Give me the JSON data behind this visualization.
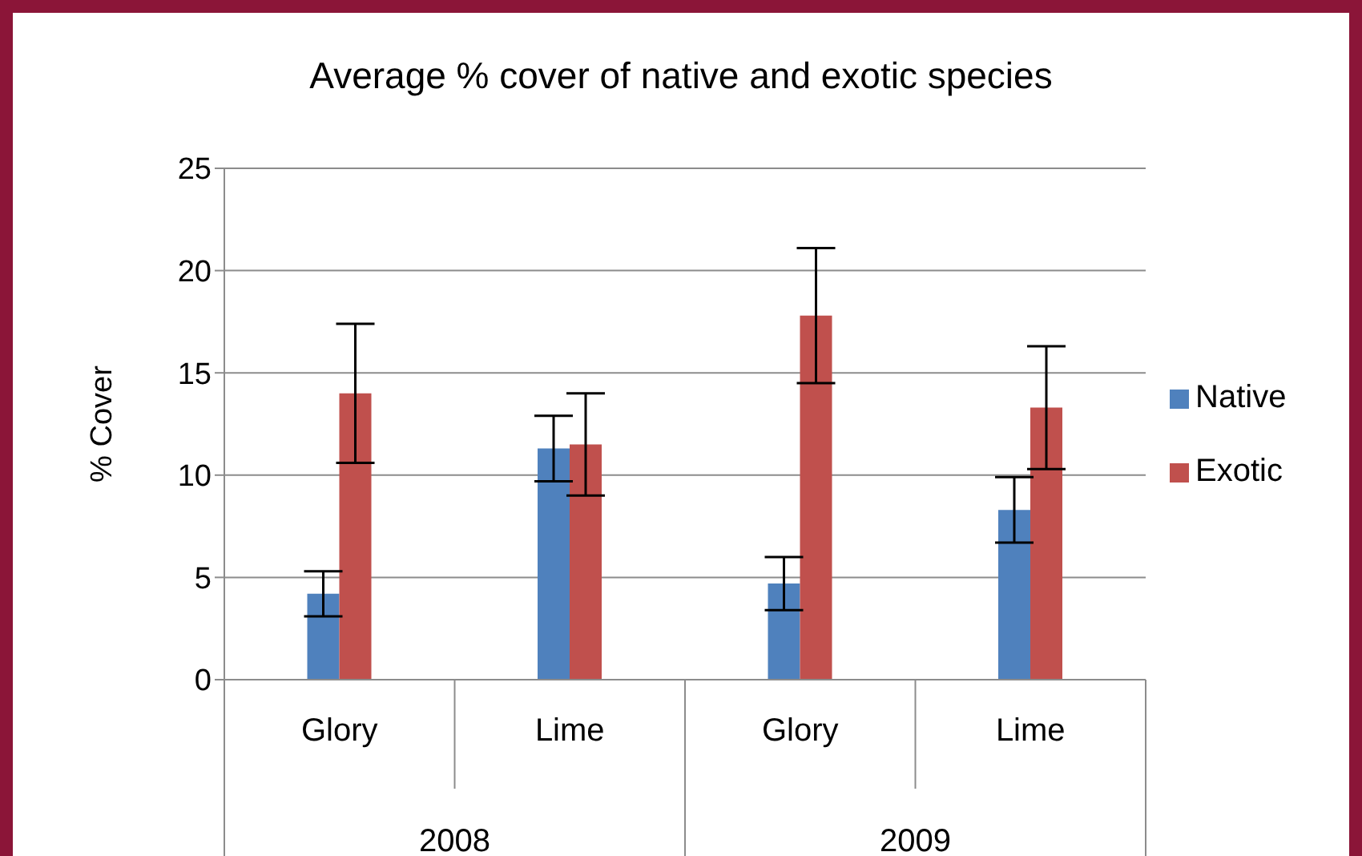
{
  "chart_data": {
    "type": "bar",
    "title": "Average % cover of native and exotic species",
    "ylabel": "% Cover",
    "categories": [
      "Glory",
      "Lime",
      "Glory",
      "Lime"
    ],
    "annotations": [
      "2008",
      "2009"
    ],
    "series": [
      {
        "name": "Native",
        "color": "#4f81bd",
        "values": [
          4.2,
          11.3,
          4.7,
          8.3
        ],
        "errors": [
          1.1,
          1.6,
          1.3,
          1.6
        ]
      },
      {
        "name": "Exotic",
        "color": "#c0504d",
        "values": [
          14.0,
          11.5,
          17.8,
          13.3
        ],
        "errors": [
          3.4,
          2.5,
          3.3,
          3.0
        ]
      }
    ],
    "ylim": [
      0,
      25
    ],
    "yticks": [
      0,
      5,
      10,
      15,
      20,
      25
    ],
    "grid": "y",
    "legend": "right"
  }
}
